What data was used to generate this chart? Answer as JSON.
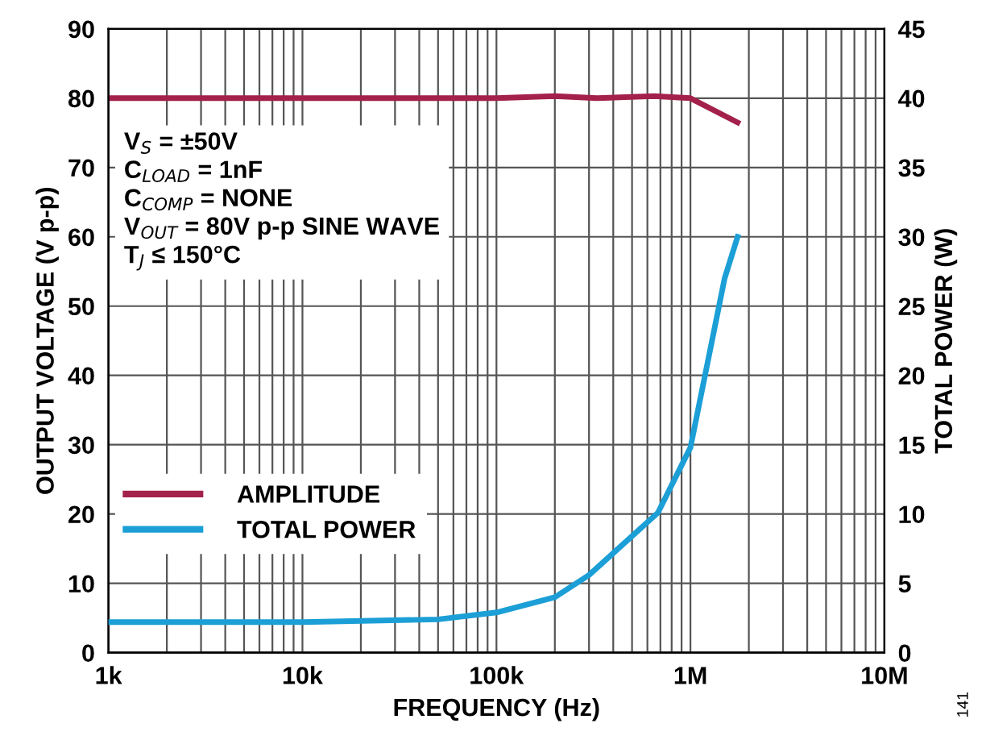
{
  "chart_data": {
    "type": "line",
    "xlabel": "FREQUENCY (Hz)",
    "ylabel": "OUTPUT VOLTAGE (V p-p)",
    "y2label": "TOTAL POWER (W)",
    "log": "x",
    "xlim": [
      1000,
      10000000
    ],
    "xticks": [
      {
        "value": 1000,
        "label": "1k"
      },
      {
        "value": 2000,
        "label": null
      },
      {
        "value": 3000,
        "label": null
      },
      {
        "value": 4000,
        "label": null
      },
      {
        "value": 5000,
        "label": null
      },
      {
        "value": 6000,
        "label": null
      },
      {
        "value": 7000,
        "label": null
      },
      {
        "value": 8000,
        "label": null
      },
      {
        "value": 9000,
        "label": null
      },
      {
        "value": 10000,
        "label": "10k"
      },
      {
        "value": 20000,
        "label": null
      },
      {
        "value": 30000,
        "label": null
      },
      {
        "value": 40000,
        "label": null
      },
      {
        "value": 50000,
        "label": null
      },
      {
        "value": 60000,
        "label": null
      },
      {
        "value": 70000,
        "label": null
      },
      {
        "value": 80000,
        "label": null
      },
      {
        "value": 90000,
        "label": null
      },
      {
        "value": 100000,
        "label": "100k"
      },
      {
        "value": 200000,
        "label": null
      },
      {
        "value": 300000,
        "label": null
      },
      {
        "value": 400000,
        "label": null
      },
      {
        "value": 500000,
        "label": null
      },
      {
        "value": 600000,
        "label": null
      },
      {
        "value": 700000,
        "label": null
      },
      {
        "value": 800000,
        "label": null
      },
      {
        "value": 900000,
        "label": null
      },
      {
        "value": 1000000,
        "label": "1M"
      },
      {
        "value": 2000000,
        "label": null
      },
      {
        "value": 3000000,
        "label": null
      },
      {
        "value": 4000000,
        "label": null
      },
      {
        "value": 5000000,
        "label": null
      },
      {
        "value": 6000000,
        "label": null
      },
      {
        "value": 7000000,
        "label": null
      },
      {
        "value": 8000000,
        "label": null
      },
      {
        "value": 9000000,
        "label": null
      },
      {
        "value": 10000000,
        "label": "10M"
      }
    ],
    "ylim": [
      0,
      90
    ],
    "yticks": [
      0,
      10,
      20,
      30,
      40,
      50,
      60,
      70,
      80,
      90
    ],
    "y2lim": [
      0,
      45
    ],
    "y2ticks": [
      0,
      5,
      10,
      15,
      20,
      25,
      30,
      35,
      40,
      45
    ],
    "grid": true,
    "legend": "bottom left",
    "marker": "none",
    "line_style": "solid",
    "series": [
      {
        "name": "AMPLITUDE",
        "color": "#a3214b",
        "x": [
          1000,
          10000,
          100000,
          200000,
          330000,
          650000,
          1000000,
          1750000
        ],
        "values": [
          80.0,
          80.0,
          80.0,
          80.3,
          80.0,
          80.3,
          80.0,
          76.5
        ]
      },
      {
        "name": "TOTAL POWER",
        "color": "#1b9fd6",
        "axis": "y2",
        "x": [
          1000,
          10000,
          50000,
          100000,
          200000,
          300000,
          680000,
          1000000,
          1500000,
          1750000
        ],
        "values": [
          2.2,
          2.2,
          2.4,
          2.9,
          4.0,
          5.6,
          10.1,
          14.8,
          27,
          30
        ]
      }
    ],
    "annotations": [
      "V$_{S}$ = ±50V\nC$_{LOAD}$ = 1nF\nC$_{COMP}$ = NONE\nV$_{OUT}$ = 80V p-p SINE WAVE\nT$_{J}$ ≤ 150°C",
      "141"
    ]
  }
}
